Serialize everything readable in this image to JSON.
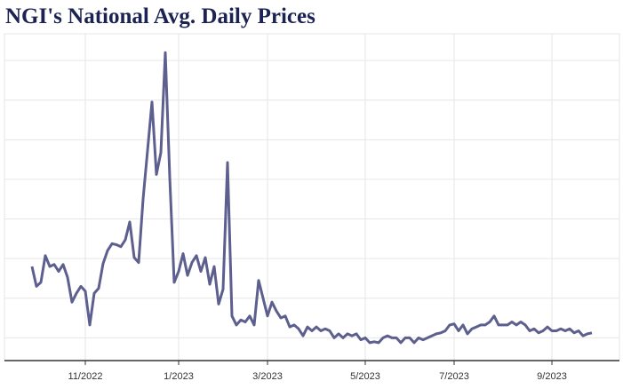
{
  "chart_data": {
    "type": "line",
    "title": "NGI's National Avg. Daily Prices",
    "categories": [
      null,
      null,
      null,
      null,
      null,
      null,
      null,
      null,
      null,
      null,
      null,
      null,
      "11/2022",
      null,
      null,
      null,
      null,
      null,
      null,
      null,
      null,
      null,
      null,
      null,
      null,
      null,
      null,
      null,
      null,
      null,
      null,
      null,
      null,
      "1/2023",
      null,
      null,
      null,
      null,
      null,
      null,
      null,
      null,
      null,
      null,
      null,
      null,
      null,
      null,
      null,
      null,
      null,
      null,
      null,
      "3/2023",
      null,
      null,
      null,
      null,
      null,
      null,
      null,
      null,
      null,
      null,
      null,
      null,
      null,
      null,
      null,
      null,
      null,
      null,
      null,
      null,
      null,
      "5/2023",
      null,
      null,
      null,
      null,
      null,
      null,
      null,
      null,
      null,
      null,
      null,
      null,
      null,
      null,
      null,
      null,
      null,
      null,
      null,
      "7/2023",
      null,
      null,
      null,
      null,
      null,
      null,
      null,
      null,
      null,
      null,
      null,
      null,
      null,
      null,
      null,
      null,
      null,
      null,
      null,
      null,
      null,
      "9/2023",
      null,
      null,
      null,
      null,
      null,
      null,
      null,
      null,
      null
    ],
    "series": [
      {
        "name": "National Avg.",
        "color": "#5d5f8e",
        "values": [
          9.2,
          7.2,
          7.6,
          10.3,
          9.2,
          9.4,
          8.7,
          9.4,
          8.1,
          5.6,
          6.5,
          7.2,
          6.7,
          3.3,
          6.5,
          7,
          9.5,
          10.8,
          11.5,
          11.4,
          11.2,
          11.9,
          13.7,
          10.1,
          9.6,
          16,
          20.9,
          25.8,
          18.5,
          20.7,
          30.8,
          18.2,
          7.6,
          8.7,
          10.5,
          8.3,
          9.6,
          10.3,
          8.7,
          10.1,
          7.4,
          9.2,
          5.4,
          6.9,
          19.7,
          4.2,
          3.3,
          3.8,
          3.6,
          4.2,
          3.3,
          7.8,
          6,
          4.2,
          5.6,
          4.7,
          4,
          4.2,
          3.1,
          3.3,
          2.9,
          2.2,
          3.1,
          2.7,
          3.1,
          2.7,
          2.9,
          2.7,
          2,
          2.4,
          2,
          2.4,
          2.2,
          2.4,
          1.8,
          2,
          1.5,
          1.6,
          1.5,
          2,
          2.2,
          2,
          2,
          1.5,
          2,
          2,
          1.5,
          2,
          1.8,
          2,
          2.2,
          2.4,
          2.5,
          2.7,
          3.3,
          3.4,
          2.7,
          3.3,
          2.4,
          2.9,
          3.1,
          3.3,
          3.3,
          3.6,
          4.2,
          3.3,
          3.3,
          3.3,
          3.6,
          3.3,
          3.6,
          3.3,
          2.7,
          2.9,
          2.5,
          2.7,
          3.1,
          2.7,
          2.7,
          2.9,
          2.7,
          2.9,
          2.5,
          2.7,
          2.2,
          2.4,
          2.5
        ]
      }
    ],
    "ylim": [
      -0.3,
      32.7
    ],
    "yticks": [
      2,
      6,
      10,
      14,
      18,
      22,
      26,
      30
    ],
    "grid": true
  }
}
